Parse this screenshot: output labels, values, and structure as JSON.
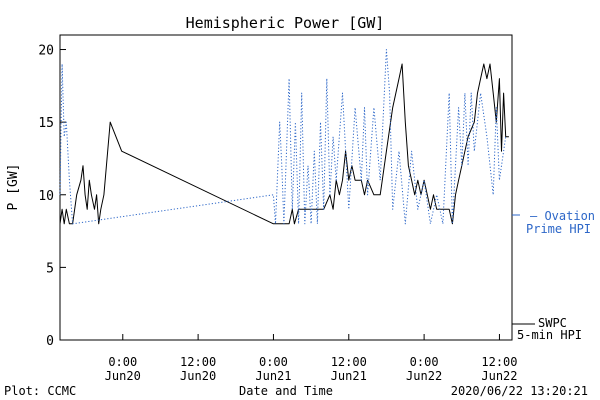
{
  "chart_data": {
    "type": "line",
    "title": "Hemispheric Power [GW]",
    "ylabel": "P [GW]",
    "xlabel": "Date and Time",
    "ylim": [
      0,
      21
    ],
    "xlim": [
      "2020-06-19 14:00",
      "2020-06-22 14:00"
    ],
    "yticks": [
      0,
      5,
      10,
      15,
      20
    ],
    "xticks": [
      {
        "time": "2020-06-20 00:00",
        "line1": "0:00",
        "line2": "Jun20"
      },
      {
        "time": "2020-06-20 12:00",
        "line1": "12:00",
        "line2": "Jun20"
      },
      {
        "time": "2020-06-21 00:00",
        "line1": "0:00",
        "line2": "Jun21"
      },
      {
        "time": "2020-06-21 12:00",
        "line1": "12:00",
        "line2": "Jun21"
      },
      {
        "time": "2020-06-22 00:00",
        "line1": "0:00",
        "line2": "Jun22"
      },
      {
        "time": "2020-06-22 12:00",
        "line1": "12:00",
        "line2": "Jun22"
      }
    ],
    "grid": false,
    "series": [
      {
        "name": "SWPC 5-min HPI",
        "label_line1": "SWPC",
        "label_line2": "5-min HPI",
        "color": "#000000",
        "style": "solid",
        "points": [
          [
            "2020-06-19 14:00",
            8
          ],
          [
            "2020-06-19 14:20",
            9
          ],
          [
            "2020-06-19 14:40",
            8
          ],
          [
            "2020-06-19 15:00",
            9
          ],
          [
            "2020-06-19 15:30",
            8
          ],
          [
            "2020-06-19 16:00",
            8
          ],
          [
            "2020-06-19 16:40",
            10
          ],
          [
            "2020-06-19 17:20",
            11
          ],
          [
            "2020-06-19 17:40",
            12
          ],
          [
            "2020-06-19 18:00",
            10
          ],
          [
            "2020-06-19 18:20",
            9
          ],
          [
            "2020-06-19 18:40",
            11
          ],
          [
            "2020-06-19 19:00",
            10
          ],
          [
            "2020-06-19 19:30",
            9
          ],
          [
            "2020-06-19 19:50",
            10
          ],
          [
            "2020-06-19 20:10",
            8
          ],
          [
            "2020-06-19 20:30",
            9
          ],
          [
            "2020-06-19 21:00",
            10
          ],
          [
            "2020-06-19 22:00",
            15
          ],
          [
            "2020-06-19 23:50",
            13
          ],
          [
            "2020-06-21 00:00",
            8
          ],
          [
            "2020-06-21 02:30",
            8
          ],
          [
            "2020-06-21 03:00",
            9
          ],
          [
            "2020-06-21 03:20",
            8
          ],
          [
            "2020-06-21 04:00",
            9
          ],
          [
            "2020-06-21 08:00",
            9
          ],
          [
            "2020-06-21 09:00",
            10
          ],
          [
            "2020-06-21 09:30",
            9
          ],
          [
            "2020-06-21 10:00",
            11
          ],
          [
            "2020-06-21 10:30",
            10
          ],
          [
            "2020-06-21 11:00",
            11
          ],
          [
            "2020-06-21 11:30",
            13
          ],
          [
            "2020-06-21 12:00",
            11
          ],
          [
            "2020-06-21 12:30",
            12
          ],
          [
            "2020-06-21 13:00",
            11
          ],
          [
            "2020-06-21 14:00",
            11
          ],
          [
            "2020-06-21 14:30",
            10
          ],
          [
            "2020-06-21 15:00",
            11
          ],
          [
            "2020-06-21 16:00",
            10
          ],
          [
            "2020-06-21 17:00",
            10
          ],
          [
            "2020-06-21 18:00",
            13
          ],
          [
            "2020-06-21 19:00",
            16
          ],
          [
            "2020-06-21 20:00",
            18
          ],
          [
            "2020-06-21 20:30",
            19
          ],
          [
            "2020-06-21 21:00",
            15
          ],
          [
            "2020-06-21 21:30",
            12
          ],
          [
            "2020-06-21 22:00",
            11
          ],
          [
            "2020-06-21 22:30",
            10
          ],
          [
            "2020-06-21 23:00",
            11
          ],
          [
            "2020-06-21 23:30",
            10
          ],
          [
            "2020-06-22 00:00",
            11
          ],
          [
            "2020-06-22 00:30",
            10
          ],
          [
            "2020-06-22 01:00",
            9
          ],
          [
            "2020-06-22 01:30",
            10
          ],
          [
            "2020-06-22 02:00",
            9
          ],
          [
            "2020-06-22 03:00",
            9
          ],
          [
            "2020-06-22 04:00",
            9
          ],
          [
            "2020-06-22 04:30",
            8
          ],
          [
            "2020-06-22 05:00",
            10
          ],
          [
            "2020-06-22 05:30",
            11
          ],
          [
            "2020-06-22 06:00",
            12
          ],
          [
            "2020-06-22 06:30",
            13
          ],
          [
            "2020-06-22 07:00",
            14
          ],
          [
            "2020-06-22 08:00",
            15
          ],
          [
            "2020-06-22 08:30",
            17
          ],
          [
            "2020-06-22 09:00",
            18
          ],
          [
            "2020-06-22 09:30",
            19
          ],
          [
            "2020-06-22 10:00",
            18
          ],
          [
            "2020-06-22 10:30",
            19
          ],
          [
            "2020-06-22 11:00",
            17
          ],
          [
            "2020-06-22 11:30",
            15
          ],
          [
            "2020-06-22 12:00",
            18
          ],
          [
            "2020-06-22 12:20",
            13
          ],
          [
            "2020-06-22 12:40",
            17
          ],
          [
            "2020-06-22 13:00",
            14
          ],
          [
            "2020-06-22 13:30",
            14
          ]
        ]
      },
      {
        "name": "Ovation Prime HPI",
        "label_line1": "— Ovation",
        "label_line2": "Prime HPI",
        "color": "#2d67c8",
        "style": "dotted",
        "points": [
          [
            "2020-06-19 14:00",
            10
          ],
          [
            "2020-06-19 14:20",
            19
          ],
          [
            "2020-06-19 14:40",
            14
          ],
          [
            "2020-06-19 15:00",
            15
          ],
          [
            "2020-06-19 15:30",
            11
          ],
          [
            "2020-06-19 16:00",
            8
          ],
          [
            "2020-06-21 00:00",
            10
          ],
          [
            "2020-06-21 00:20",
            8
          ],
          [
            "2020-06-21 01:00",
            15
          ],
          [
            "2020-06-21 01:20",
            12
          ],
          [
            "2020-06-21 01:40",
            8
          ],
          [
            "2020-06-21 02:30",
            18
          ],
          [
            "2020-06-21 03:00",
            9
          ],
          [
            "2020-06-21 03:30",
            15
          ],
          [
            "2020-06-21 04:00",
            8
          ],
          [
            "2020-06-21 04:30",
            17
          ],
          [
            "2020-06-21 05:00",
            8
          ],
          [
            "2020-06-21 05:30",
            12
          ],
          [
            "2020-06-21 06:00",
            8
          ],
          [
            "2020-06-21 06:30",
            13
          ],
          [
            "2020-06-21 07:00",
            8
          ],
          [
            "2020-06-21 07:30",
            15
          ],
          [
            "2020-06-21 08:00",
            9
          ],
          [
            "2020-06-21 08:30",
            18
          ],
          [
            "2020-06-21 09:00",
            10
          ],
          [
            "2020-06-21 09:30",
            14
          ],
          [
            "2020-06-21 10:00",
            11
          ],
          [
            "2020-06-21 11:00",
            17
          ],
          [
            "2020-06-21 12:00",
            9
          ],
          [
            "2020-06-21 13:00",
            16
          ],
          [
            "2020-06-21 14:00",
            11
          ],
          [
            "2020-06-21 14:30",
            16
          ],
          [
            "2020-06-21 15:00",
            10
          ],
          [
            "2020-06-21 16:00",
            16
          ],
          [
            "2020-06-21 17:00",
            11
          ],
          [
            "2020-06-21 18:00",
            20
          ],
          [
            "2020-06-21 18:30",
            17
          ],
          [
            "2020-06-21 19:00",
            9
          ],
          [
            "2020-06-21 20:00",
            13
          ],
          [
            "2020-06-21 21:00",
            8
          ],
          [
            "2020-06-21 22:00",
            13
          ],
          [
            "2020-06-21 23:00",
            9
          ],
          [
            "2020-06-22 00:00",
            11
          ],
          [
            "2020-06-22 01:00",
            8
          ],
          [
            "2020-06-22 02:00",
            10
          ],
          [
            "2020-06-22 03:00",
            8
          ],
          [
            "2020-06-22 04:00",
            17
          ],
          [
            "2020-06-22 04:30",
            8
          ],
          [
            "2020-06-22 05:00",
            12
          ],
          [
            "2020-06-22 05:30",
            16
          ],
          [
            "2020-06-22 06:00",
            12
          ],
          [
            "2020-06-22 06:30",
            17
          ],
          [
            "2020-06-22 07:00",
            12
          ],
          [
            "2020-06-22 07:30",
            17
          ],
          [
            "2020-06-22 08:00",
            13
          ],
          [
            "2020-06-22 09:00",
            17
          ],
          [
            "2020-06-22 10:00",
            14
          ],
          [
            "2020-06-22 11:00",
            10
          ],
          [
            "2020-06-22 11:30",
            16
          ],
          [
            "2020-06-22 12:00",
            11
          ],
          [
            "2020-06-22 13:00",
            14
          ]
        ]
      }
    ]
  },
  "footer": {
    "plot_credit": "Plot: CCMC",
    "timestamp": "2020/06/22 13:20:21"
  }
}
